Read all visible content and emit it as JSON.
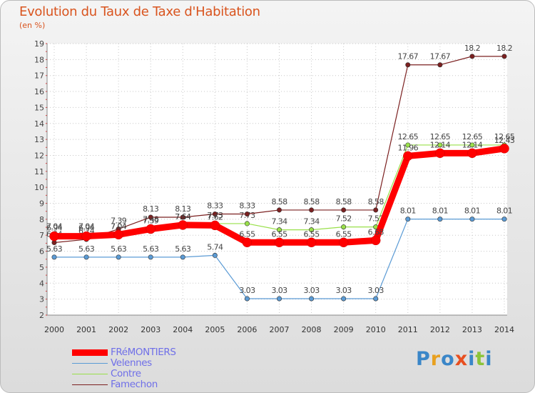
{
  "chart_data": {
    "type": "line",
    "title": "Evolution du Taux de Taxe d'Habitation",
    "subtitle": "(en %)",
    "x": [
      2000,
      2001,
      2002,
      2003,
      2004,
      2005,
      2006,
      2007,
      2008,
      2009,
      2010,
      2011,
      2012,
      2013,
      2014
    ],
    "ylim": [
      2,
      19
    ],
    "yticks": [
      2,
      3,
      4,
      5,
      6,
      7,
      8,
      9,
      10,
      11,
      12,
      13,
      14,
      15,
      16,
      17,
      18,
      19
    ],
    "grid": "dotted",
    "legend_position": "bottom-left",
    "series": [
      {
        "name": "FRéMONTIERS",
        "color": "#ff0000",
        "values": [
          6.94,
          6.94,
          7.04,
          7.39,
          7.64,
          7.62,
          6.55,
          6.55,
          6.55,
          6.55,
          6.68,
          11.96,
          12.14,
          12.14,
          12.43
        ],
        "labels": [
          "6.94",
          "6.94",
          "7.04",
          "7.39",
          "7.64",
          "7.62",
          "6.55",
          "6.55",
          "6.55",
          "6.55",
          "6.68",
          "11.96",
          "12.14",
          "12.14",
          "12.43"
        ]
      },
      {
        "name": "Velennes",
        "color": "#5b9bd5",
        "values": [
          5.63,
          5.63,
          5.63,
          5.63,
          5.63,
          5.74,
          3.03,
          3.03,
          3.03,
          3.03,
          3.03,
          8.01,
          8.01,
          8.01,
          8.01
        ],
        "labels": [
          "5.63",
          "5.63",
          "5.63",
          "5.63",
          "5.63",
          "5.74",
          "3.03",
          "3.03",
          "3.03",
          "3.03",
          "3.03",
          "8.01",
          "8.01",
          "8.01",
          "8.01"
        ]
      },
      {
        "name": "Contre",
        "color": "#99e04a",
        "values": [
          7.04,
          7.04,
          7.04,
          7.48,
          7.64,
          7.73,
          7.73,
          7.34,
          7.34,
          7.52,
          7.52,
          12.65,
          12.65,
          12.65,
          12.65
        ],
        "labels": [
          "7.04",
          "7.04",
          "7.04",
          "7.48",
          "7.64",
          "7.73",
          "7.73",
          "7.34",
          "7.34",
          "7.52",
          "7.52",
          "12.65",
          "12.65",
          "12.65",
          "12.65"
        ]
      },
      {
        "name": "Famechon",
        "color": "#7b2020",
        "values": [
          6.54,
          6.74,
          7.39,
          8.13,
          8.13,
          8.33,
          8.33,
          8.58,
          8.58,
          8.58,
          8.58,
          17.67,
          17.67,
          18.2,
          18.2
        ],
        "labels": [
          "6.54",
          "6.74",
          "7.39",
          "8.13",
          "8.13",
          "8.33",
          "8.33",
          "8.58",
          "8.58",
          "8.58",
          "8.58",
          "17.67",
          "17.67",
          "18.2",
          "18.2"
        ]
      }
    ]
  },
  "legend": {
    "items": [
      {
        "label": "FRéMONTIERS",
        "color": "#ff0000"
      },
      {
        "label": "Velennes",
        "color": "#5b9bd5"
      },
      {
        "label": "Contre",
        "color": "#99e04a"
      },
      {
        "label": "Famechon",
        "color": "#7b2020"
      }
    ]
  },
  "logo": {
    "text": "Proxiti",
    "letters": [
      "P",
      "r",
      "o",
      "x",
      "i",
      "t",
      "i"
    ],
    "colors": [
      "#3a86c8",
      "#e8a020",
      "#3a86c8",
      "#e84f20",
      "#3a86c8",
      "#8bc43a",
      "#3a86c8"
    ]
  }
}
